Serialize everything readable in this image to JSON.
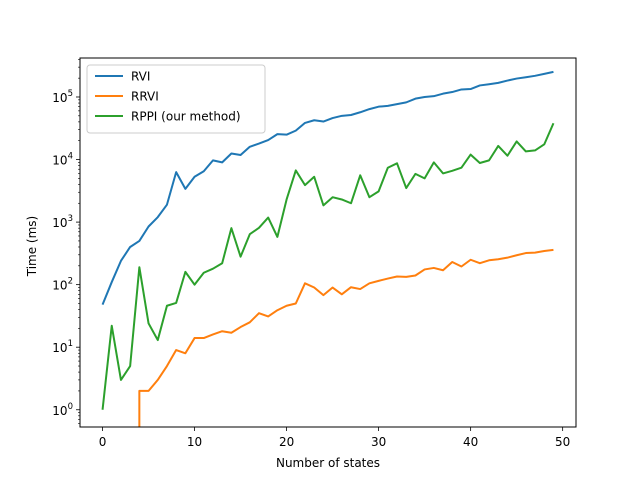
{
  "chart_data": {
    "type": "line",
    "xlabel": "Number of states",
    "ylabel": "Time (ms)",
    "yscale": "log",
    "xlim": [
      -2.45,
      51.45
    ],
    "ylim": [
      0.53,
      420000
    ],
    "x_ticks": [
      0,
      10,
      20,
      30,
      40,
      50
    ],
    "y_ticks": [
      {
        "value": 1,
        "base": "10",
        "exp": "0"
      },
      {
        "value": 10,
        "base": "10",
        "exp": "1"
      },
      {
        "value": 100,
        "base": "10",
        "exp": "2"
      },
      {
        "value": 1000,
        "base": "10",
        "exp": "3"
      },
      {
        "value": 10000,
        "base": "10",
        "exp": "4"
      },
      {
        "value": 100000,
        "base": "10",
        "exp": "5"
      }
    ],
    "legend_position": "upper-left",
    "grid": false,
    "series": [
      {
        "name": "RVI",
        "color": "#1f77b4",
        "x": [
          0,
          1,
          2,
          3,
          4,
          5,
          6,
          7,
          8,
          9,
          10,
          11,
          12,
          13,
          14,
          15,
          16,
          17,
          18,
          19,
          20,
          21,
          22,
          23,
          24,
          25,
          26,
          27,
          28,
          29,
          30,
          31,
          32,
          33,
          34,
          35,
          36,
          37,
          38,
          39,
          40,
          41,
          42,
          43,
          44,
          45,
          46,
          47,
          48,
          49
        ],
        "y": [
          48,
          110,
          240,
          400,
          500,
          850,
          1200,
          1900,
          6300,
          3400,
          5300,
          6500,
          9700,
          9000,
          12500,
          11800,
          16000,
          18000,
          20500,
          25500,
          25000,
          29000,
          38500,
          42500,
          40500,
          46000,
          50000,
          51500,
          57000,
          64000,
          70000,
          72000,
          77000,
          82000,
          94000,
          100000,
          103000,
          113000,
          120000,
          132000,
          134000,
          153000,
          160000,
          168000,
          183000,
          197000,
          207000,
          218000,
          234000,
          252000
        ]
      },
      {
        "name": "RRVI",
        "color": "#ff7f0e",
        "x": [
          4,
          4,
          5,
          6,
          7,
          8,
          9,
          10,
          11,
          12,
          13,
          14,
          15,
          16,
          17,
          18,
          19,
          20,
          21,
          22,
          23,
          24,
          25,
          26,
          27,
          28,
          29,
          30,
          31,
          32,
          33,
          34,
          35,
          36,
          37,
          38,
          39,
          40,
          41,
          42,
          43,
          44,
          45,
          46,
          47,
          48,
          49
        ],
        "y": [
          0.5,
          2,
          2,
          3,
          5,
          9,
          8,
          14,
          14,
          16,
          18,
          17,
          21,
          25,
          35,
          31,
          39,
          46,
          50,
          105,
          90,
          68,
          90,
          70,
          91,
          85,
          105,
          115,
          125,
          135,
          133,
          140,
          175,
          185,
          170,
          230,
          195,
          250,
          220,
          245,
          255,
          270,
          295,
          320,
          325,
          345,
          360
        ]
      },
      {
        "name": "RPPI (our method)",
        "color": "#2ca02c",
        "x": [
          0,
          1,
          2,
          3,
          4,
          5,
          6,
          7,
          8,
          9,
          10,
          11,
          12,
          13,
          14,
          15,
          16,
          17,
          18,
          19,
          20,
          21,
          22,
          23,
          24,
          25,
          26,
          27,
          28,
          29,
          30,
          31,
          32,
          33,
          34,
          35,
          36,
          37,
          38,
          39,
          40,
          41,
          42,
          43,
          44,
          45,
          46,
          47,
          48,
          49
        ],
        "y": [
          1,
          22,
          3,
          5,
          190,
          24,
          13,
          46,
          51,
          160,
          100,
          155,
          180,
          220,
          800,
          280,
          640,
          810,
          1180,
          580,
          2300,
          6700,
          3900,
          5300,
          1850,
          2500,
          2300,
          2000,
          5600,
          2500,
          3100,
          7400,
          8700,
          3500,
          5900,
          5000,
          9000,
          6000,
          6600,
          7400,
          12000,
          8800,
          9700,
          16500,
          11500,
          19500,
          13500,
          14000,
          17500,
          38000
        ]
      }
    ]
  }
}
